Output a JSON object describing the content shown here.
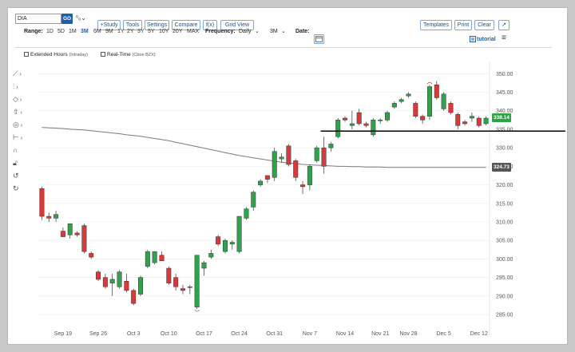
{
  "toolbar": {
    "symbol": "DIA",
    "go_label": "GO",
    "compare_glyph": "⁰ₒ⌄",
    "study": "+Study",
    "tools": "Tools",
    "settings": "Settings",
    "compare": "Compare",
    "fx": "f(x)",
    "grid_view": "Grid View",
    "templates": "Templates",
    "print": "Print",
    "clear": "Clear",
    "popout_glyph": "↗",
    "tutorial": "tutorial"
  },
  "range": {
    "label": "Range:",
    "options": [
      "1D",
      "5D",
      "1M",
      "3M",
      "6M",
      "9M",
      "1Y",
      "2Y",
      "3Y",
      "5Y",
      "10Y",
      "20Y",
      "MAX"
    ],
    "selected": "3M"
  },
  "frequency": {
    "label": "Frequency:",
    "value": "Daily"
  },
  "period": {
    "value": "3M"
  },
  "date": {
    "label": "Date:"
  },
  "options": {
    "extended_hours": "Extended Hours",
    "extended_hours_note": "(Intraday)",
    "real_time": "Real-Time",
    "real_time_note": "(Cboe BZX)"
  },
  "colors": {
    "up": "#2ea34b",
    "down": "#d8393a",
    "ma": "#7a7a7a",
    "grid": "#eeeeee",
    "axis_text": "#555555",
    "hline": "#000000"
  },
  "chart_data": {
    "type": "candlestick",
    "symbol": "DIA",
    "ylim": [
      282,
      352
    ],
    "y_ticks": [
      285,
      290,
      295,
      300,
      305,
      310,
      315,
      320,
      325,
      330,
      335,
      340,
      345,
      350
    ],
    "x_tick_labels": [
      {
        "label": "Sep 19",
        "index": 3
      },
      {
        "label": "Sep 26",
        "index": 8
      },
      {
        "label": "Oct 3",
        "index": 13
      },
      {
        "label": "Oct 10",
        "index": 18
      },
      {
        "label": "Oct 17",
        "index": 23
      },
      {
        "label": "Oct 24",
        "index": 28
      },
      {
        "label": "Oct 31",
        "index": 33
      },
      {
        "label": "Nov 7",
        "index": 38
      },
      {
        "label": "Nov 14",
        "index": 43
      },
      {
        "label": "Nov 21",
        "index": 48
      },
      {
        "label": "Nov 28",
        "index": 52
      },
      {
        "label": "Dec 5",
        "index": 57
      },
      {
        "label": "Dec 12",
        "index": 62
      }
    ],
    "candles": [
      {
        "o": 319.0,
        "h": 319.5,
        "l": 310.5,
        "c": 311.5
      },
      {
        "o": 311.5,
        "h": 312.5,
        "l": 310.0,
        "c": 311.0
      },
      {
        "o": 311.0,
        "h": 313.0,
        "l": 310.0,
        "c": 312.0
      },
      {
        "o": 307.5,
        "h": 308.5,
        "l": 306.0,
        "c": 306.0
      },
      {
        "o": 306.5,
        "h": 309.5,
        "l": 305.5,
        "c": 309.5
      },
      {
        "o": 307.0,
        "h": 307.5,
        "l": 306.0,
        "c": 306.5
      },
      {
        "o": 309.0,
        "h": 309.5,
        "l": 301.5,
        "c": 302.0
      },
      {
        "o": 301.5,
        "h": 302.0,
        "l": 300.0,
        "c": 300.5
      },
      {
        "o": 296.5,
        "h": 297.0,
        "l": 294.0,
        "c": 294.5
      },
      {
        "o": 295.0,
        "h": 296.0,
        "l": 292.0,
        "c": 292.5
      },
      {
        "o": 293.5,
        "h": 296.0,
        "l": 290.0,
        "c": 294.5
      },
      {
        "o": 292.5,
        "h": 297.0,
        "l": 292.0,
        "c": 296.5
      },
      {
        "o": 294.0,
        "h": 296.0,
        "l": 291.0,
        "c": 291.5
      },
      {
        "o": 291.5,
        "h": 292.0,
        "l": 287.5,
        "c": 288.0
      },
      {
        "o": 290.5,
        "h": 295.5,
        "l": 290.0,
        "c": 295.0
      },
      {
        "o": 298.0,
        "h": 302.5,
        "l": 297.5,
        "c": 302.0
      },
      {
        "o": 299.0,
        "h": 302.0,
        "l": 298.5,
        "c": 302.0
      },
      {
        "o": 301.0,
        "h": 302.0,
        "l": 299.5,
        "c": 299.5
      },
      {
        "o": 297.5,
        "h": 298.0,
        "l": 293.0,
        "c": 293.5
      },
      {
        "o": 295.0,
        "h": 296.0,
        "l": 291.5,
        "c": 292.5
      },
      {
        "o": 292.0,
        "h": 293.0,
        "l": 290.5,
        "c": 291.5
      },
      {
        "o": 292.5,
        "h": 293.0,
        "l": 290.5,
        "c": 292.5
      },
      {
        "o": 287.0,
        "h": 301.0,
        "l": 286.5,
        "c": 301.0
      },
      {
        "o": 297.5,
        "h": 299.5,
        "l": 295.5,
        "c": 299.0
      },
      {
        "o": 300.5,
        "h": 302.5,
        "l": 300.0,
        "c": 301.5
      },
      {
        "o": 306.0,
        "h": 306.5,
        "l": 303.5,
        "c": 304.0
      },
      {
        "o": 302.0,
        "h": 305.5,
        "l": 301.5,
        "c": 305.0
      },
      {
        "o": 304.0,
        "h": 305.0,
        "l": 302.5,
        "c": 304.5
      },
      {
        "o": 302.0,
        "h": 311.5,
        "l": 301.5,
        "c": 311.5
      },
      {
        "o": 311.0,
        "h": 314.0,
        "l": 310.5,
        "c": 313.5
      },
      {
        "o": 314.0,
        "h": 318.5,
        "l": 313.0,
        "c": 318.0
      },
      {
        "o": 320.0,
        "h": 321.5,
        "l": 319.5,
        "c": 321.0
      },
      {
        "o": 322.5,
        "h": 322.5,
        "l": 320.5,
        "c": 321.5
      },
      {
        "o": 322.0,
        "h": 330.0,
        "l": 321.0,
        "c": 329.0
      },
      {
        "o": 327.0,
        "h": 328.5,
        "l": 326.0,
        "c": 327.5
      },
      {
        "o": 330.5,
        "h": 331.0,
        "l": 325.0,
        "c": 325.5
      },
      {
        "o": 326.5,
        "h": 327.0,
        "l": 321.0,
        "c": 322.0
      },
      {
        "o": 320.0,
        "h": 321.0,
        "l": 317.5,
        "c": 319.5
      },
      {
        "o": 320.0,
        "h": 325.5,
        "l": 318.5,
        "c": 325.0
      },
      {
        "o": 326.5,
        "h": 330.5,
        "l": 326.0,
        "c": 330.0
      },
      {
        "o": 330.0,
        "h": 333.0,
        "l": 323.0,
        "c": 325.0
      },
      {
        "o": 330.0,
        "h": 331.5,
        "l": 329.0,
        "c": 331.0
      },
      {
        "o": 333.0,
        "h": 338.0,
        "l": 332.5,
        "c": 337.5
      },
      {
        "o": 338.0,
        "h": 338.5,
        "l": 337.0,
        "c": 337.5
      },
      {
        "o": 336.0,
        "h": 340.0,
        "l": 335.0,
        "c": 336.5
      },
      {
        "o": 339.5,
        "h": 340.5,
        "l": 336.0,
        "c": 336.5
      },
      {
        "o": 336.5,
        "h": 337.0,
        "l": 335.5,
        "c": 336.0
      },
      {
        "o": 333.5,
        "h": 338.0,
        "l": 333.0,
        "c": 337.5
      },
      {
        "o": 337.5,
        "h": 338.0,
        "l": 336.5,
        "c": 337.5
      },
      {
        "o": 337.5,
        "h": 340.0,
        "l": 337.0,
        "c": 339.5
      },
      {
        "o": 341.0,
        "h": 342.5,
        "l": 340.5,
        "c": 342.0
      },
      {
        "o": 342.5,
        "h": 343.5,
        "l": 342.0,
        "c": 343.0
      },
      {
        "o": 344.0,
        "h": 345.0,
        "l": 343.5,
        "c": 344.5
      },
      {
        "o": 342.0,
        "h": 342.5,
        "l": 338.0,
        "c": 338.5
      },
      {
        "o": 338.5,
        "h": 339.0,
        "l": 336.5,
        "c": 337.5
      },
      {
        "o": 338.5,
        "h": 347.0,
        "l": 337.5,
        "c": 346.5
      },
      {
        "o": 347.0,
        "h": 348.0,
        "l": 343.0,
        "c": 343.5
      },
      {
        "o": 340.5,
        "h": 345.0,
        "l": 340.0,
        "c": 344.5
      },
      {
        "o": 342.0,
        "h": 342.5,
        "l": 339.0,
        "c": 339.5
      },
      {
        "o": 339.0,
        "h": 339.5,
        "l": 335.0,
        "c": 336.0
      },
      {
        "o": 337.0,
        "h": 337.5,
        "l": 336.0,
        "c": 336.5
      },
      {
        "o": 338.0,
        "h": 339.5,
        "l": 337.0,
        "c": 338.5
      },
      {
        "o": 338.0,
        "h": 338.5,
        "l": 335.5,
        "c": 336.0
      },
      {
        "o": 336.5,
        "h": 338.5,
        "l": 336.0,
        "c": 338.0
      }
    ],
    "moving_average": [
      335.5,
      335.4,
      335.3,
      335.2,
      335.0,
      334.9,
      334.8,
      334.6,
      334.4,
      334.2,
      334.0,
      333.8,
      333.5,
      333.3,
      333.1,
      332.8,
      332.5,
      332.2,
      331.9,
      331.5,
      331.1,
      330.7,
      330.3,
      329.9,
      329.5,
      329.1,
      328.7,
      328.3,
      327.9,
      327.6,
      327.3,
      327.0,
      326.7,
      326.4,
      326.1,
      325.9,
      325.7,
      325.5,
      325.4,
      325.3,
      325.2,
      325.1,
      325.0,
      325.0,
      324.9,
      324.9,
      324.8,
      324.8,
      324.8,
      324.7,
      324.7,
      324.7,
      324.7,
      324.7,
      324.7,
      324.7,
      324.7,
      324.7,
      324.7,
      324.7,
      324.7,
      324.7,
      324.7,
      324.7
    ],
    "last_price": "338.14",
    "ma_last": "324.73",
    "support_line_value": 334.5,
    "marker_index": 55
  }
}
